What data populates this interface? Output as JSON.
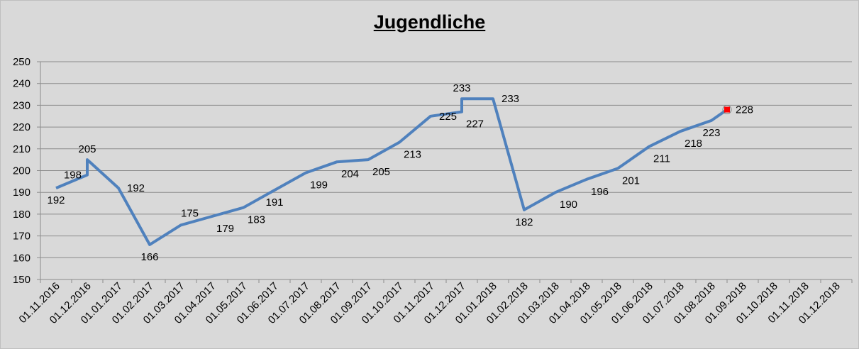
{
  "chart_data": {
    "type": "line",
    "title": "Jugendliche",
    "xlabel": "",
    "ylabel": "",
    "ylim": [
      150,
      250
    ],
    "yticks": [
      150,
      160,
      170,
      180,
      190,
      200,
      210,
      220,
      230,
      240,
      250
    ],
    "grid": true,
    "legend": "none",
    "line_color": "#4f81bd",
    "marker_color": "#ff0000",
    "categories": [
      "01.11.2016",
      "01.12.2016",
      "01.01.2017",
      "01.02.2017",
      "01.03.2017",
      "01.04.2017",
      "01.05.2017",
      "01.06.2017",
      "01.07.2017",
      "01.08.2017",
      "01.09.2017",
      "01.10.2017",
      "01.11.2017",
      "01.12.2017",
      "01.01.2018",
      "01.02.2018",
      "01.03.2018",
      "01.04.2018",
      "01.05.2018",
      "01.06.2018",
      "01.07.2018",
      "01.08.2018",
      "01.09.2018",
      "01.10.2018",
      "01.11.2018",
      "01.12.2018"
    ],
    "points": [
      {
        "x": 0.0,
        "y": 192,
        "label": "192",
        "pos": "below"
      },
      {
        "x": 1.0,
        "y": 198,
        "label": "198",
        "pos": "left"
      },
      {
        "x": 1.0,
        "y": 205,
        "label": "205",
        "pos": "above"
      },
      {
        "x": 2.0,
        "y": 192,
        "label": "192",
        "pos": "right"
      },
      {
        "x": 3.0,
        "y": 166,
        "label": "166",
        "pos": "below"
      },
      {
        "x": 4.0,
        "y": 175,
        "label": "175",
        "pos": "above-right"
      },
      {
        "x": 5.0,
        "y": 179,
        "label": "179",
        "pos": "below-right"
      },
      {
        "x": 6.0,
        "y": 183,
        "label": "183",
        "pos": "below-right"
      },
      {
        "x": 7.0,
        "y": 191,
        "label": "191",
        "pos": "below"
      },
      {
        "x": 8.0,
        "y": 199,
        "label": "199",
        "pos": "below-right"
      },
      {
        "x": 9.0,
        "y": 204,
        "label": "204",
        "pos": "below-right"
      },
      {
        "x": 10.0,
        "y": 205,
        "label": "205",
        "pos": "below-right"
      },
      {
        "x": 11.0,
        "y": 213,
        "label": "213",
        "pos": "below-right"
      },
      {
        "x": 12.0,
        "y": 225,
        "label": "225",
        "pos": "right"
      },
      {
        "x": 13.0,
        "y": 227,
        "label": "227",
        "pos": "below-right"
      },
      {
        "x": 13.0,
        "y": 233,
        "label": "233",
        "pos": "above"
      },
      {
        "x": 14.0,
        "y": 233,
        "label": "233",
        "pos": "right"
      },
      {
        "x": 15.0,
        "y": 182,
        "label": "182",
        "pos": "below"
      },
      {
        "x": 16.0,
        "y": 190,
        "label": "190",
        "pos": "below-right"
      },
      {
        "x": 17.0,
        "y": 196,
        "label": "196",
        "pos": "below-right"
      },
      {
        "x": 18.0,
        "y": 201,
        "label": "201",
        "pos": "below-right"
      },
      {
        "x": 19.0,
        "y": 211,
        "label": "211",
        "pos": "below-right"
      },
      {
        "x": 20.0,
        "y": 218,
        "label": "218",
        "pos": "below-right"
      },
      {
        "x": 21.0,
        "y": 223,
        "label": "223",
        "pos": "below"
      },
      {
        "x": 21.5,
        "y": 228,
        "label": "228",
        "pos": "right"
      }
    ]
  }
}
